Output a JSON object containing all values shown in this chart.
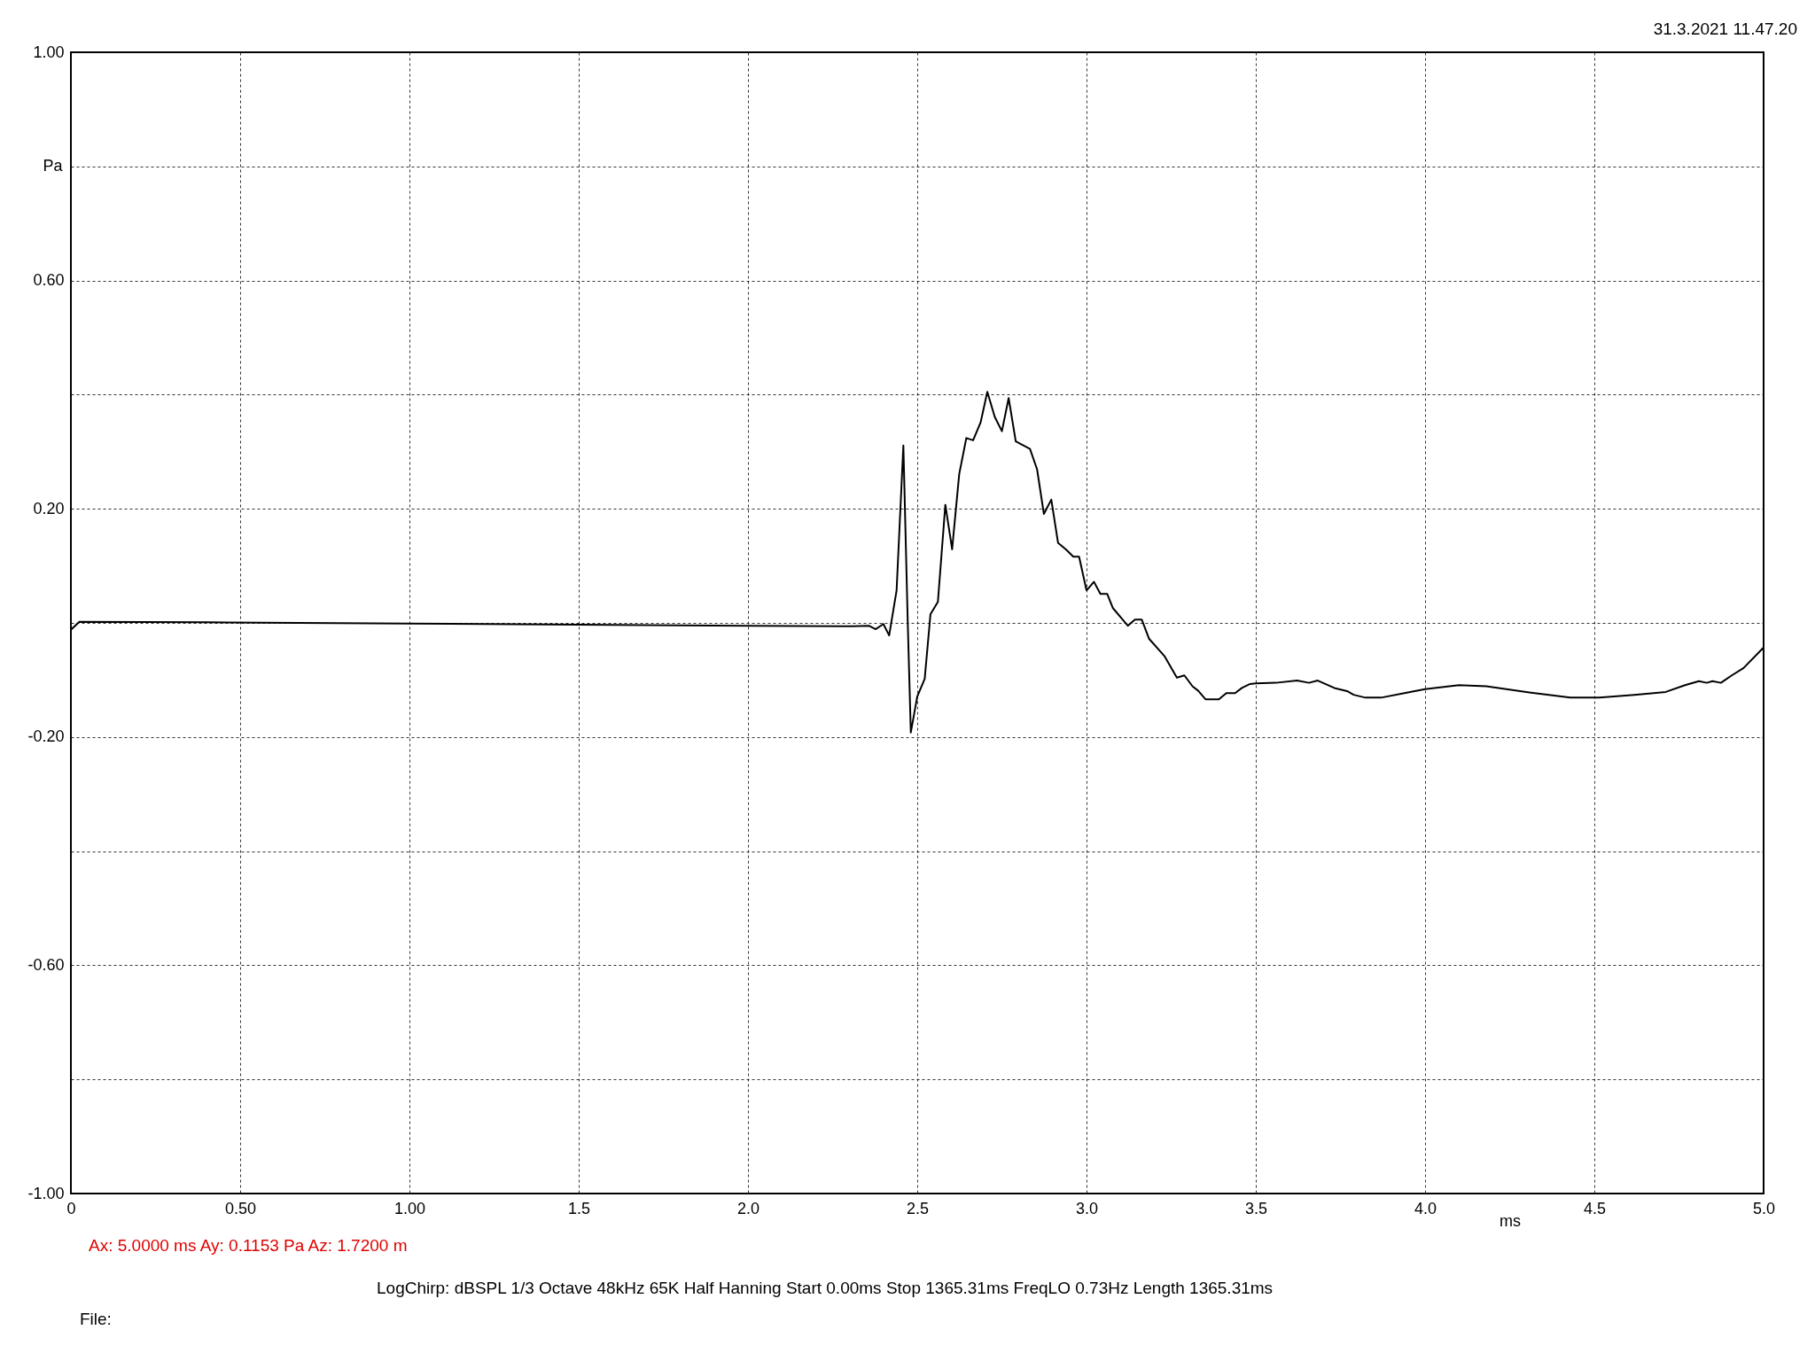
{
  "chart_data": {
    "type": "line",
    "xlabel": "ms",
    "ylabel": "Pa",
    "annotations": [
      "31.3.2021 11.47.20",
      "Ax: 5.0000 ms   Ay: 0.1153 Pa   Az: 1.7200 m",
      "LogChirp:  dBSPL   1/3 Octave   48kHz   65K   Half Hanning   Start 0.00ms    Stop 1365.31ms    FreqLO 0.73Hz    Length 1365.31ms",
      "File:"
    ],
    "x": [
      0,
      0.025,
      0.4,
      1.0,
      1.5,
      2.0,
      2.274,
      2.309,
      2.357,
      2.377,
      2.4,
      2.417,
      2.439,
      2.459,
      2.472,
      2.481,
      2.5,
      2.522,
      2.539,
      2.561,
      2.583,
      2.603,
      2.624,
      2.645,
      2.665,
      2.687,
      2.707,
      2.729,
      2.75,
      2.77,
      2.791,
      2.833,
      2.854,
      2.874,
      2.896,
      2.916,
      2.939,
      2.961,
      2.978,
      3.0,
      3.022,
      3.041,
      3.061,
      3.078,
      3.122,
      3.143,
      3.163,
      3.185,
      3.23,
      3.267,
      3.289,
      3.313,
      3.33,
      3.352,
      3.391,
      3.413,
      3.439,
      3.459,
      3.483,
      3.5,
      3.559,
      3.622,
      3.657,
      3.683,
      3.732,
      3.772,
      3.789,
      3.824,
      3.87,
      3.939,
      4.0,
      4.1,
      4.181,
      4.308,
      4.429,
      4.515,
      4.618,
      4.711,
      4.768,
      4.809,
      4.832,
      4.849,
      4.874,
      4.906,
      4.941,
      5.0
    ],
    "series": [
      {
        "color": "#000000",
        "values": [
          -0.012,
          0.002,
          0.001,
          -0.001,
          -0.003,
          -0.005,
          -0.006,
          -0.006,
          -0.005,
          -0.011,
          -0.002,
          -0.022,
          0.057,
          0.311,
          0.0,
          -0.192,
          -0.129,
          -0.098,
          0.015,
          0.037,
          0.207,
          0.129,
          0.261,
          0.324,
          0.32,
          0.351,
          0.405,
          0.361,
          0.336,
          0.394,
          0.318,
          0.305,
          0.269,
          0.191,
          0.216,
          0.14,
          0.129,
          0.116,
          0.116,
          0.057,
          0.072,
          0.051,
          0.051,
          0.026,
          -0.005,
          0.006,
          0.006,
          -0.028,
          -0.058,
          -0.096,
          -0.092,
          -0.111,
          -0.119,
          -0.134,
          -0.134,
          -0.123,
          -0.123,
          -0.114,
          -0.107,
          -0.106,
          -0.105,
          -0.101,
          -0.105,
          -0.101,
          -0.114,
          -0.12,
          -0.126,
          -0.131,
          -0.131,
          -0.123,
          -0.116,
          -0.109,
          -0.111,
          -0.122,
          -0.131,
          -0.131,
          -0.126,
          -0.121,
          -0.109,
          -0.102,
          -0.105,
          -0.102,
          -0.105,
          -0.092,
          -0.079,
          -0.043
        ]
      }
    ],
    "xlim": [
      0,
      5
    ],
    "xticks": [
      0,
      {
        "value": 0.5,
        "label": "0.50"
      },
      {
        "value": 1,
        "label": "1.00"
      },
      1.5,
      {
        "value": 2,
        "label": "2.0"
      },
      2.5,
      {
        "value": 3,
        "label": "3.0"
      },
      3.5,
      {
        "value": 4,
        "label": "4.0"
      },
      4.5,
      {
        "value": 5,
        "label": "5.0"
      }
    ],
    "ylim": [
      -1,
      1
    ],
    "yticks": [
      {
        "value": -1,
        "label": "-1.00"
      },
      {
        "value": -0.8,
        "label": null
      },
      {
        "value": -0.6,
        "label": "-0.60"
      },
      {
        "value": -0.4,
        "label": null
      },
      {
        "value": -0.2,
        "label": "-0.20"
      },
      {
        "value": 0,
        "label": null
      },
      {
        "value": 0.2,
        "label": "0.20"
      },
      {
        "value": 0.4,
        "label": null
      },
      {
        "value": 0.6,
        "label": "0.60"
      },
      {
        "value": 0.8,
        "label": null
      },
      {
        "value": 1,
        "label": "1.00"
      }
    ],
    "grid": true,
    "line_style": "solid"
  }
}
